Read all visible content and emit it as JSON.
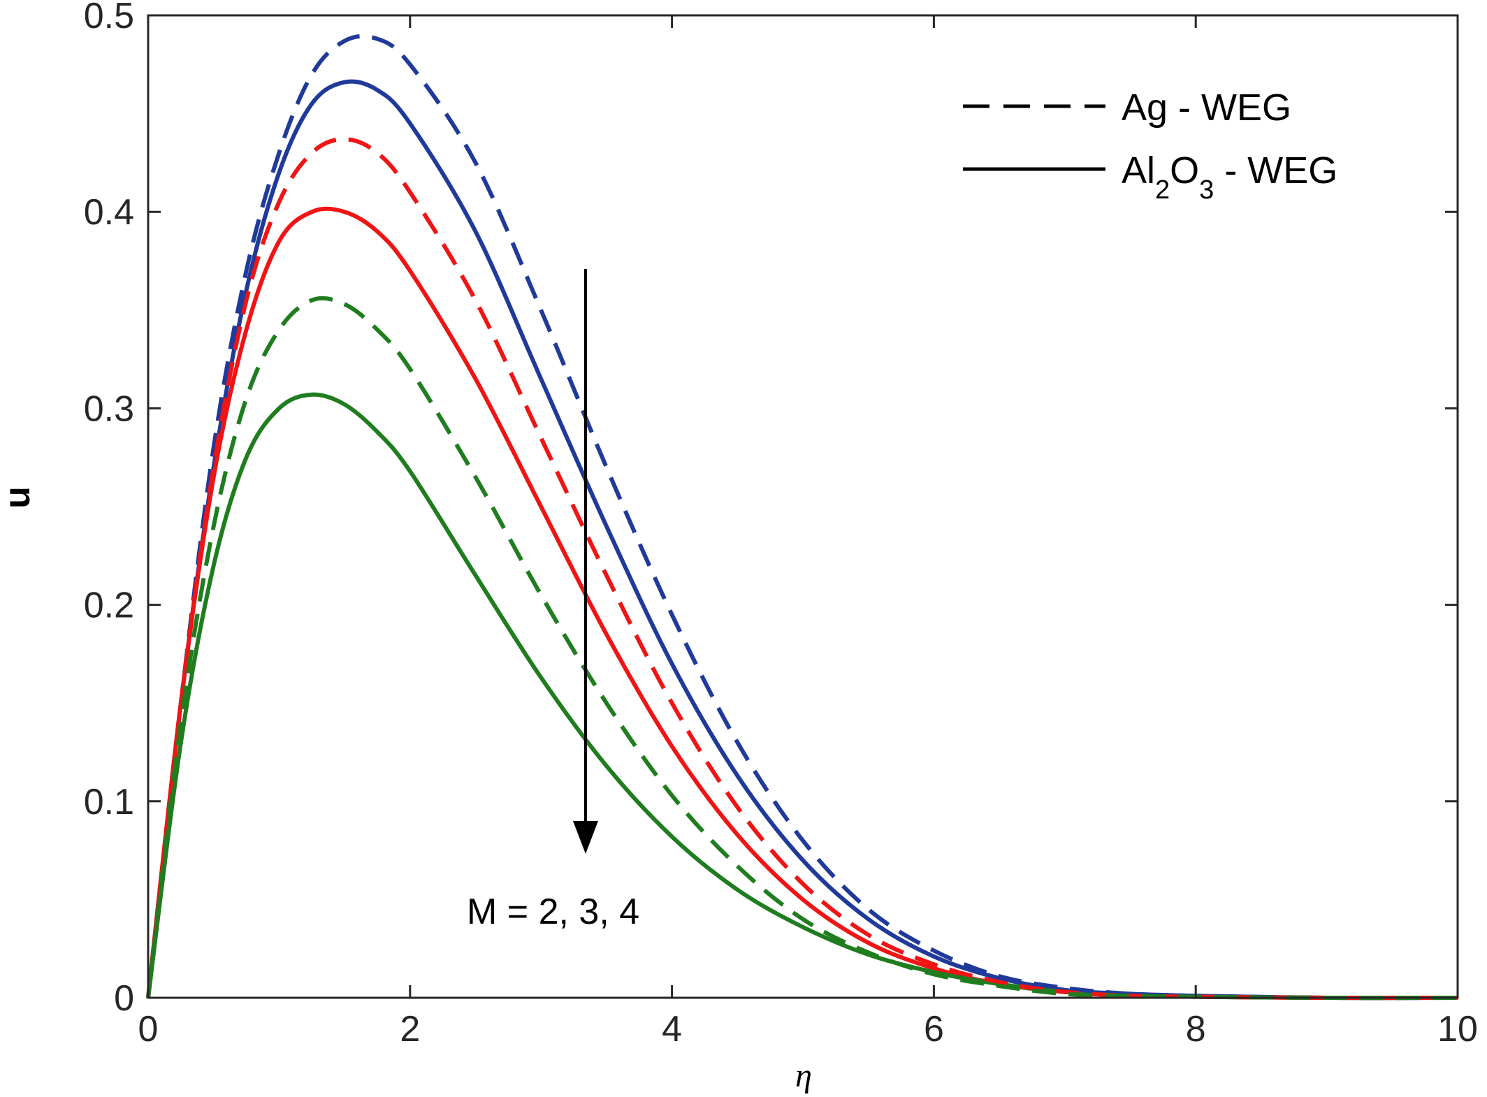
{
  "chart_data": {
    "type": "line",
    "xlabel": "η",
    "ylabel": "u",
    "xlim": [
      0,
      10
    ],
    "ylim": [
      0,
      0.5
    ],
    "x_ticks": [
      "0",
      "2",
      "4",
      "6",
      "8",
      "10"
    ],
    "y_ticks": [
      "0",
      "0.1",
      "0.2",
      "0.3",
      "0.4",
      "0.5"
    ],
    "grid": false,
    "legend_position": "top-right",
    "legend": [
      {
        "label_main": "Ag - WEG",
        "style": "dashed"
      },
      {
        "label_parts": [
          "Al",
          "2",
          "O",
          "3",
          " - WEG"
        ],
        "style": "solid"
      }
    ],
    "annotation": {
      "text": "M = 2, 3, 4",
      "arrow_direction": "down"
    },
    "colors": {
      "M2": "#1f3a9a",
      "M3": "#f01414",
      "M4": "#1f7d1f",
      "text": "#000000"
    },
    "series": [
      {
        "fluid": "Ag - WEG",
        "style": "dashed",
        "color": "#1f3a9a",
        "points": [
          [
            0,
            0
          ],
          [
            0.25,
            0.15
          ],
          [
            0.5,
            0.28
          ],
          [
            0.75,
            0.37
          ],
          [
            1,
            0.43
          ],
          [
            1.25,
            0.47
          ],
          [
            1.5,
            0.487
          ],
          [
            1.75,
            0.488
          ],
          [
            2,
            0.475
          ],
          [
            2.5,
            0.425
          ],
          [
            3,
            0.35
          ],
          [
            3.5,
            0.27
          ],
          [
            4,
            0.195
          ],
          [
            4.5,
            0.13
          ],
          [
            5,
            0.08
          ],
          [
            5.5,
            0.045
          ],
          [
            6,
            0.024
          ],
          [
            6.5,
            0.011
          ],
          [
            7,
            0.005
          ],
          [
            7.5,
            0.002
          ],
          [
            8,
            0.001
          ],
          [
            9,
            0
          ],
          [
            10,
            0
          ]
        ]
      },
      {
        "fluid": "Al2O3 - WEG",
        "style": "solid",
        "color": "#1f3a9a",
        "points": [
          [
            0,
            0
          ],
          [
            0.25,
            0.15
          ],
          [
            0.5,
            0.27
          ],
          [
            0.75,
            0.36
          ],
          [
            1,
            0.42
          ],
          [
            1.25,
            0.455
          ],
          [
            1.5,
            0.466
          ],
          [
            1.75,
            0.462
          ],
          [
            2,
            0.445
          ],
          [
            2.5,
            0.39
          ],
          [
            3,
            0.315
          ],
          [
            3.5,
            0.24
          ],
          [
            4,
            0.17
          ],
          [
            4.5,
            0.113
          ],
          [
            5,
            0.07
          ],
          [
            5.5,
            0.04
          ],
          [
            6,
            0.021
          ],
          [
            6.5,
            0.01
          ],
          [
            7,
            0.004
          ],
          [
            7.5,
            0.002
          ],
          [
            8,
            0.001
          ],
          [
            9,
            0
          ],
          [
            10,
            0
          ]
        ]
      },
      {
        "fluid": "Ag - WEG",
        "style": "dashed",
        "color": "#f01414",
        "points": [
          [
            0,
            0
          ],
          [
            0.25,
            0.15
          ],
          [
            0.5,
            0.27
          ],
          [
            0.75,
            0.355
          ],
          [
            1,
            0.405
          ],
          [
            1.25,
            0.43
          ],
          [
            1.5,
            0.437
          ],
          [
            1.75,
            0.43
          ],
          [
            2,
            0.41
          ],
          [
            2.5,
            0.355
          ],
          [
            3,
            0.285
          ],
          [
            3.5,
            0.215
          ],
          [
            4,
            0.15
          ],
          [
            4.5,
            0.097
          ],
          [
            5,
            0.058
          ],
          [
            5.5,
            0.032
          ],
          [
            6,
            0.017
          ],
          [
            6.5,
            0.008
          ],
          [
            7,
            0.003
          ],
          [
            7.5,
            0.001
          ],
          [
            8,
            0.0005
          ],
          [
            9,
            0
          ],
          [
            10,
            0
          ]
        ]
      },
      {
        "fluid": "Al2O3 - WEG",
        "style": "solid",
        "color": "#f01414",
        "points": [
          [
            0,
            0
          ],
          [
            0.25,
            0.15
          ],
          [
            0.5,
            0.265
          ],
          [
            0.75,
            0.34
          ],
          [
            1,
            0.385
          ],
          [
            1.25,
            0.4
          ],
          [
            1.5,
            0.4
          ],
          [
            1.75,
            0.39
          ],
          [
            2,
            0.37
          ],
          [
            2.5,
            0.315
          ],
          [
            3,
            0.25
          ],
          [
            3.5,
            0.185
          ],
          [
            4,
            0.128
          ],
          [
            4.5,
            0.083
          ],
          [
            5,
            0.05
          ],
          [
            5.5,
            0.028
          ],
          [
            6,
            0.015
          ],
          [
            6.5,
            0.007
          ],
          [
            7,
            0.003
          ],
          [
            7.5,
            0.001
          ],
          [
            8,
            0.0005
          ],
          [
            9,
            0
          ],
          [
            10,
            0
          ]
        ]
      },
      {
        "fluid": "Ag - WEG",
        "style": "dashed",
        "color": "#1f7d1f",
        "points": [
          [
            0,
            0
          ],
          [
            0.25,
            0.14
          ],
          [
            0.5,
            0.24
          ],
          [
            0.75,
            0.305
          ],
          [
            1,
            0.34
          ],
          [
            1.25,
            0.355
          ],
          [
            1.5,
            0.353
          ],
          [
            1.75,
            0.34
          ],
          [
            2,
            0.32
          ],
          [
            2.5,
            0.265
          ],
          [
            3,
            0.205
          ],
          [
            3.5,
            0.15
          ],
          [
            4,
            0.103
          ],
          [
            4.5,
            0.067
          ],
          [
            5,
            0.04
          ],
          [
            5.5,
            0.023
          ],
          [
            6,
            0.012
          ],
          [
            6.5,
            0.006
          ],
          [
            7,
            0.002
          ],
          [
            7.5,
            0.001
          ],
          [
            8,
            0.0005
          ],
          [
            9,
            0
          ],
          [
            10,
            0
          ]
        ]
      },
      {
        "fluid": "Al2O3 - WEG",
        "style": "solid",
        "color": "#1f7d1f",
        "points": [
          [
            0,
            0
          ],
          [
            0.25,
            0.13
          ],
          [
            0.5,
            0.22
          ],
          [
            0.75,
            0.275
          ],
          [
            1,
            0.3
          ],
          [
            1.25,
            0.307
          ],
          [
            1.5,
            0.302
          ],
          [
            1.75,
            0.288
          ],
          [
            2,
            0.268
          ],
          [
            2.5,
            0.215
          ],
          [
            3,
            0.163
          ],
          [
            3.5,
            0.118
          ],
          [
            4,
            0.082
          ],
          [
            4.5,
            0.055
          ],
          [
            5,
            0.036
          ],
          [
            5.5,
            0.022
          ],
          [
            6,
            0.013
          ],
          [
            6.5,
            0.007
          ],
          [
            7,
            0.003
          ],
          [
            7.5,
            0.001
          ],
          [
            8,
            0.0005
          ],
          [
            9,
            0
          ],
          [
            10,
            0
          ]
        ]
      }
    ]
  }
}
